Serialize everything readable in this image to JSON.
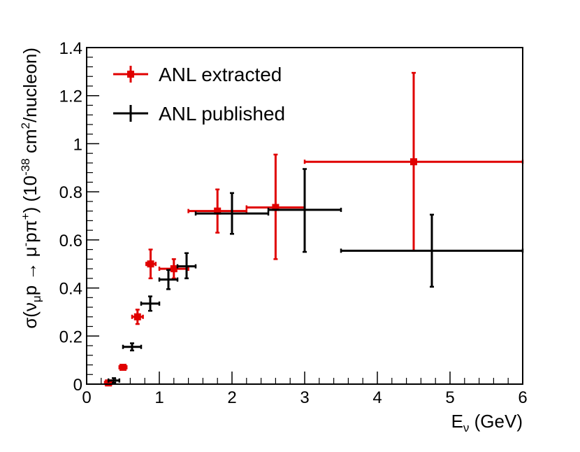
{
  "chart_data": {
    "type": "scatter",
    "title": "",
    "xlabel": "E",
    "xlabel_sub": "ν",
    "xlabel_suffix": " (GeV)",
    "ylabel": {
      "prefix": "σ(ν",
      "sub": "μ",
      "mid1": "p → μ",
      "sup1": "-",
      "mid2": "pπ",
      "sup2": "+",
      "mid3": ") (10",
      "sup3": "-38",
      "mid4": " cm",
      "sup4": "2",
      "mid5": "/nucleon)"
    },
    "xlim": [
      0,
      6
    ],
    "ylim": [
      0,
      1.4
    ],
    "xticks": [
      0,
      1,
      2,
      3,
      4,
      5,
      6
    ],
    "xtick_labels": [
      "0",
      "1",
      "2",
      "3",
      "4",
      "5",
      "6"
    ],
    "yticks": [
      0,
      0.2,
      0.4,
      0.6,
      0.8,
      1.0,
      1.2,
      1.4
    ],
    "ytick_labels": [
      "0",
      "0.2",
      "0.4",
      "0.6",
      "0.8",
      "1",
      "1.2",
      "1.4"
    ],
    "legend_position": "top-left",
    "series": [
      {
        "name": "ANL extracted",
        "color": "#e00000",
        "marker": "square",
        "points": [
          {
            "x": 0.3,
            "xlo": 0.25,
            "xhi": 0.35,
            "y": 0.005,
            "ylo": 0.0,
            "yhi": 0.01
          },
          {
            "x": 0.5,
            "xlo": 0.45,
            "xhi": 0.55,
            "y": 0.07,
            "ylo": 0.065,
            "yhi": 0.075
          },
          {
            "x": 0.7,
            "xlo": 0.625,
            "xhi": 0.775,
            "y": 0.28,
            "ylo": 0.25,
            "yhi": 0.31
          },
          {
            "x": 0.88,
            "xlo": 0.82,
            "xhi": 0.95,
            "y": 0.5,
            "ylo": 0.44,
            "yhi": 0.56
          },
          {
            "x": 1.2,
            "xlo": 1.0,
            "xhi": 1.4,
            "y": 0.48,
            "ylo": 0.44,
            "yhi": 0.52
          },
          {
            "x": 1.8,
            "xlo": 1.4,
            "xhi": 2.2,
            "y": 0.72,
            "ylo": 0.63,
            "yhi": 0.81
          },
          {
            "x": 2.6,
            "xlo": 2.2,
            "xhi": 3.0,
            "y": 0.735,
            "ylo": 0.52,
            "yhi": 0.955
          },
          {
            "x": 4.5,
            "xlo": 3.0,
            "xhi": 6.0,
            "y": 0.925,
            "ylo": 0.555,
            "yhi": 1.295
          }
        ]
      },
      {
        "name": "ANL published",
        "color": "#000000",
        "marker": "none",
        "points": [
          {
            "x": 0.375,
            "xlo": 0.3,
            "xhi": 0.45,
            "y": 0.015,
            "ylo": 0.005,
            "yhi": 0.025
          },
          {
            "x": 0.625,
            "xlo": 0.5,
            "xhi": 0.75,
            "y": 0.155,
            "ylo": 0.14,
            "yhi": 0.17
          },
          {
            "x": 0.875,
            "xlo": 0.75,
            "xhi": 1.0,
            "y": 0.335,
            "ylo": 0.305,
            "yhi": 0.365
          },
          {
            "x": 1.125,
            "xlo": 1.0,
            "xhi": 1.25,
            "y": 0.435,
            "ylo": 0.395,
            "yhi": 0.475
          },
          {
            "x": 1.375,
            "xlo": 1.25,
            "xhi": 1.5,
            "y": 0.49,
            "ylo": 0.44,
            "yhi": 0.545
          },
          {
            "x": 2.0,
            "xlo": 1.5,
            "xhi": 2.5,
            "y": 0.71,
            "ylo": 0.625,
            "yhi": 0.795
          },
          {
            "x": 3.0,
            "xlo": 2.5,
            "xhi": 3.5,
            "y": 0.725,
            "ylo": 0.55,
            "yhi": 0.895
          },
          {
            "x": 4.75,
            "xlo": 3.5,
            "xhi": 6.0,
            "y": 0.555,
            "ylo": 0.405,
            "yhi": 0.705
          }
        ]
      }
    ]
  }
}
